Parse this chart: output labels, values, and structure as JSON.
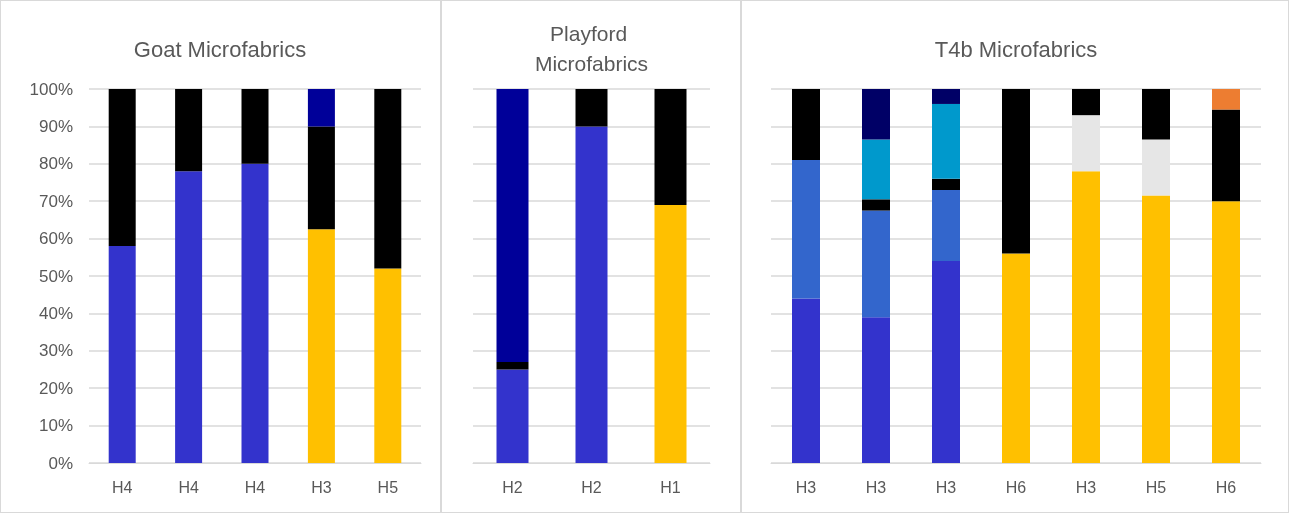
{
  "chart_data": [
    {
      "type": "bar",
      "title": "Goat Microfabrics",
      "categories": [
        "H4",
        "H4",
        "H4",
        "H3",
        "H5"
      ],
      "stacked": true,
      "ylim": [
        0,
        100
      ],
      "yticks": [
        {
          "value": 0,
          "label": "0%"
        },
        {
          "value": 10,
          "label": "10%"
        },
        {
          "value": 20,
          "label": "20%"
        },
        {
          "value": 30,
          "label": "30%"
        },
        {
          "value": 40,
          "label": "40%"
        },
        {
          "value": 50,
          "label": "50%"
        },
        {
          "value": 60,
          "label": "60%"
        },
        {
          "value": 70,
          "label": "70%"
        },
        {
          "value": 80,
          "label": "80%"
        },
        {
          "value": 90,
          "label": "90%"
        },
        {
          "value": 100,
          "label": "100%"
        }
      ],
      "grid": "y",
      "series": [
        {
          "color": "#3333cc",
          "values": [
            58,
            78,
            80,
            0,
            0
          ]
        },
        {
          "color": "#ffc000",
          "values": [
            0,
            0,
            0,
            62.5,
            52
          ]
        },
        {
          "color": "#000000",
          "values": [
            42,
            22,
            20,
            27.5,
            48
          ]
        },
        {
          "color": "#000099",
          "values": [
            0,
            0,
            0,
            10,
            0
          ]
        }
      ]
    },
    {
      "type": "bar",
      "title": "Playford Microfabrics",
      "categories": [
        "H2",
        "H2",
        "H1"
      ],
      "stacked": true,
      "ylim": [
        0,
        100
      ],
      "yticks": [
        0,
        10,
        20,
        30,
        40,
        50,
        60,
        70,
        80,
        90,
        100
      ],
      "tick_labels": "x",
      "grid": "y",
      "series": [
        {
          "color": "#3333cc",
          "values": [
            25,
            90,
            0
          ]
        },
        {
          "color": "#ffc000",
          "values": [
            0,
            0,
            69
          ]
        },
        {
          "color": "#000000",
          "values": [
            2,
            10,
            31
          ]
        },
        {
          "color": "#000099",
          "values": [
            73,
            0,
            0
          ]
        }
      ]
    },
    {
      "type": "bar",
      "title": "T4b Microfabrics",
      "categories": [
        "H3",
        "H3",
        "H3",
        "H6",
        "H3",
        "H5",
        "H6"
      ],
      "stacked": true,
      "ylim": [
        0,
        100
      ],
      "yticks": [
        0,
        10,
        20,
        30,
        40,
        50,
        60,
        70,
        80,
        90,
        100
      ],
      "tick_labels": "x",
      "grid": "y",
      "series": [
        {
          "color": "#3333cc",
          "values": [
            44,
            39,
            54,
            0,
            0,
            0,
            0
          ]
        },
        {
          "color": "#3366cc",
          "values": [
            37,
            28.5,
            19,
            0,
            0,
            0,
            0
          ]
        },
        {
          "color": "#ffc000",
          "values": [
            0,
            0,
            0,
            56,
            78,
            71.5,
            70
          ]
        },
        {
          "color": "#e6e6e6",
          "values": [
            0,
            0,
            0,
            0,
            15,
            15,
            0
          ]
        },
        {
          "color": "#000000",
          "values": [
            19,
            3,
            3,
            44,
            7,
            13.5,
            24.5
          ]
        },
        {
          "color": "#0099cc",
          "values": [
            0,
            16,
            20,
            0,
            0,
            0,
            0
          ]
        },
        {
          "color": "#000066",
          "values": [
            0,
            13.5,
            4,
            0,
            0,
            0,
            0
          ]
        },
        {
          "color": "#ed7d31",
          "values": [
            0,
            0,
            0,
            0,
            0,
            0,
            5.5
          ]
        }
      ]
    }
  ]
}
